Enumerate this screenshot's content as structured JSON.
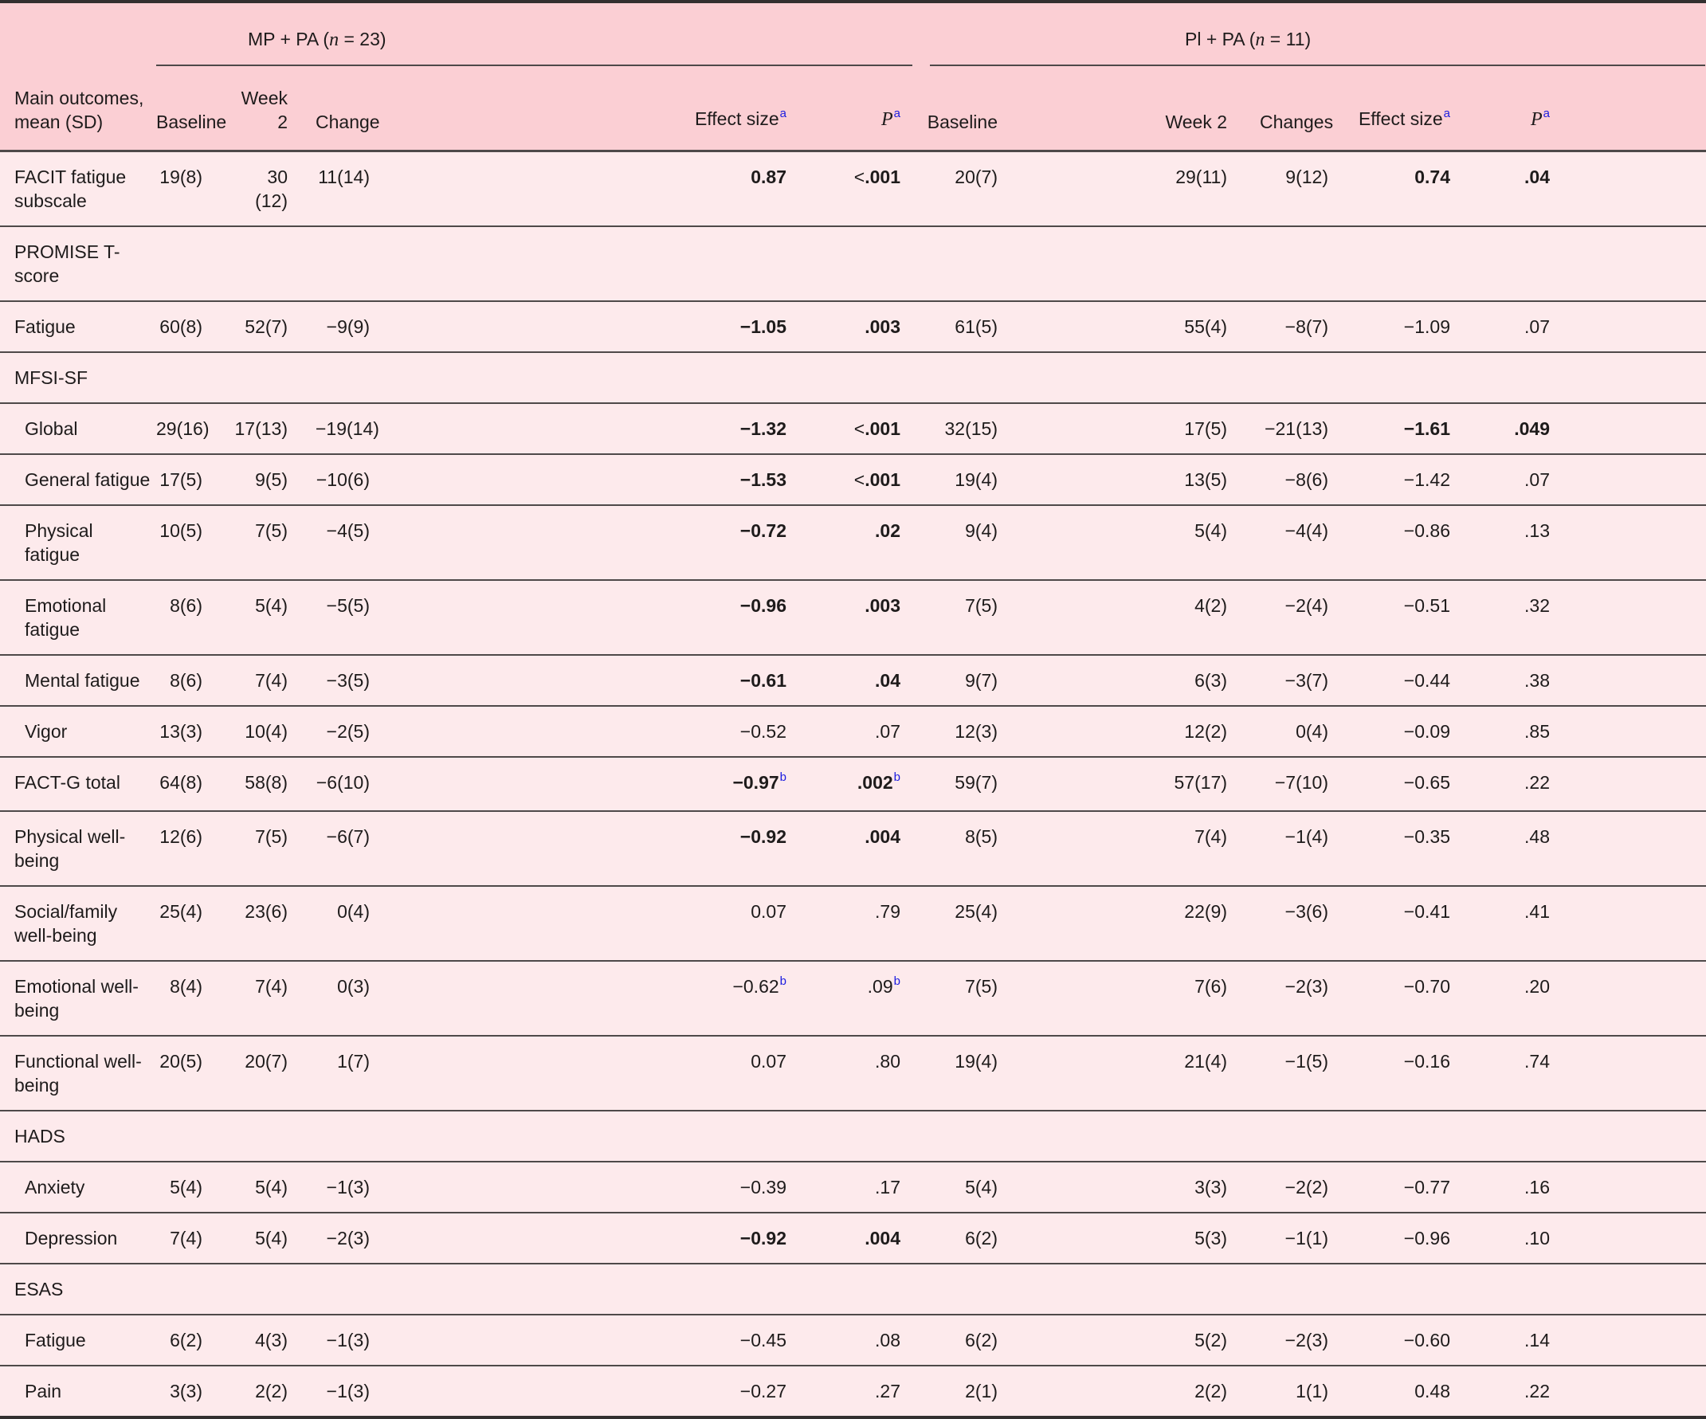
{
  "colors": {
    "header_bg": "#fbcfd4",
    "row_bg": "#fdeaec",
    "line": "#4e4949",
    "line_strong": "#332f2f",
    "text": "#1e1b1b",
    "superscript_blue": "#1b1be0"
  },
  "table": {
    "label_header_lines": [
      "Main outcomes,",
      "mean (SD)"
    ],
    "groups": [
      {
        "title_prefix": "MP + PA (",
        "title_n": "n",
        "title_suffix": " = 23)",
        "columns": [
          {
            "label": "Baseline"
          },
          {
            "label": "Week 2"
          },
          {
            "label": "Change"
          },
          {
            "label": "Effect size",
            "sup": "a"
          },
          {
            "label": "P",
            "sup": "a"
          }
        ]
      },
      {
        "title_prefix": "Pl + PA (",
        "title_n": "n",
        "title_suffix": " = 11)",
        "columns": [
          {
            "label": "Baseline"
          },
          {
            "label": "Week 2"
          },
          {
            "label": "Changes"
          },
          {
            "label": "Effect size",
            "sup": "a"
          },
          {
            "label": "P",
            "sup": "a"
          }
        ]
      }
    ],
    "rows": [
      {
        "label": [
          "FACIT fatigue",
          "subscale"
        ],
        "indent": false,
        "section": false,
        "cells": [
          {
            "t": "19(8)"
          },
          {
            "t": "30 (12)"
          },
          {
            "t": "11(14)"
          },
          {
            "t": "0.87",
            "b": true
          },
          {
            "t": "<.001",
            "b": true
          },
          {
            "t": "20(7)"
          },
          {
            "t": "29(11)"
          },
          {
            "t": "9(12)"
          },
          {
            "t": "0.74",
            "b": true
          },
          {
            "t": ".04",
            "b": true
          }
        ]
      },
      {
        "label": [
          "PROMISE T-score"
        ],
        "indent": false,
        "section": true,
        "cells": []
      },
      {
        "label": [
          "Fatigue"
        ],
        "indent": false,
        "section": false,
        "cells": [
          {
            "t": "60(8)"
          },
          {
            "t": "52(7)"
          },
          {
            "t": "−9(9)"
          },
          {
            "t": "−1.05",
            "b": true
          },
          {
            "t": ".003",
            "b": true
          },
          {
            "t": "61(5)"
          },
          {
            "t": "55(4)"
          },
          {
            "t": "−8(7)"
          },
          {
            "t": "−1.09"
          },
          {
            "t": ".07"
          }
        ]
      },
      {
        "label": [
          "MFSI-SF"
        ],
        "indent": false,
        "section": true,
        "cells": []
      },
      {
        "label": [
          "Global"
        ],
        "indent": true,
        "section": false,
        "cells": [
          {
            "t": "29(16)"
          },
          {
            "t": "17(13)"
          },
          {
            "t": "−19(14)"
          },
          {
            "t": "−1.32",
            "b": true
          },
          {
            "t": "<.001",
            "b": true
          },
          {
            "t": "32(15)"
          },
          {
            "t": "17(5)"
          },
          {
            "t": "−21(13)"
          },
          {
            "t": "−1.61",
            "b": true
          },
          {
            "t": ".049",
            "b": true
          }
        ]
      },
      {
        "label": [
          "General fatigue"
        ],
        "indent": true,
        "section": false,
        "cells": [
          {
            "t": "17(5)"
          },
          {
            "t": "9(5)"
          },
          {
            "t": "−10(6)"
          },
          {
            "t": "−1.53",
            "b": true
          },
          {
            "t": "<.001",
            "b": true
          },
          {
            "t": "19(4)"
          },
          {
            "t": "13(5)"
          },
          {
            "t": "−8(6)"
          },
          {
            "t": "−1.42"
          },
          {
            "t": ".07"
          }
        ]
      },
      {
        "label": [
          "Physical fatigue"
        ],
        "indent": true,
        "section": false,
        "cells": [
          {
            "t": "10(5)"
          },
          {
            "t": "7(5)"
          },
          {
            "t": "−4(5)"
          },
          {
            "t": "−0.72",
            "b": true
          },
          {
            "t": ".02",
            "b": true
          },
          {
            "t": "9(4)"
          },
          {
            "t": "5(4)"
          },
          {
            "t": "−4(4)"
          },
          {
            "t": "−0.86"
          },
          {
            "t": ".13"
          }
        ]
      },
      {
        "label": [
          "Emotional",
          "fatigue"
        ],
        "indent": true,
        "section": false,
        "cells": [
          {
            "t": "8(6)"
          },
          {
            "t": "5(4)"
          },
          {
            "t": "−5(5)"
          },
          {
            "t": "−0.96",
            "b": true
          },
          {
            "t": ".003",
            "b": true
          },
          {
            "t": "7(5)"
          },
          {
            "t": "4(2)"
          },
          {
            "t": "−2(4)"
          },
          {
            "t": "−0.51"
          },
          {
            "t": ".32"
          }
        ]
      },
      {
        "label": [
          "Mental fatigue"
        ],
        "indent": true,
        "section": false,
        "cells": [
          {
            "t": "8(6)"
          },
          {
            "t": "7(4)"
          },
          {
            "t": "−3(5)"
          },
          {
            "t": "−0.61",
            "b": true
          },
          {
            "t": ".04",
            "b": true
          },
          {
            "t": "9(7)"
          },
          {
            "t": "6(3)"
          },
          {
            "t": "−3(7)"
          },
          {
            "t": "−0.44"
          },
          {
            "t": ".38"
          }
        ]
      },
      {
        "label": [
          "Vigor"
        ],
        "indent": true,
        "section": false,
        "cells": [
          {
            "t": "13(3)"
          },
          {
            "t": "10(4)"
          },
          {
            "t": "−2(5)"
          },
          {
            "t": "−0.52"
          },
          {
            "t": ".07"
          },
          {
            "t": "12(3)"
          },
          {
            "t": "12(2)"
          },
          {
            "t": "0(4)"
          },
          {
            "t": "−0.09"
          },
          {
            "t": ".85"
          }
        ]
      },
      {
        "label": [
          "FACT-G total"
        ],
        "indent": false,
        "section": false,
        "cells": [
          {
            "t": "64(8)"
          },
          {
            "t": "58(8)"
          },
          {
            "t": "−6(10)"
          },
          {
            "t": "−0.97",
            "b": true,
            "s": "b"
          },
          {
            "t": ".002",
            "b": true,
            "s": "b"
          },
          {
            "t": "59(7)"
          },
          {
            "t": "57(17)"
          },
          {
            "t": "−7(10)"
          },
          {
            "t": "−0.65"
          },
          {
            "t": ".22"
          }
        ]
      },
      {
        "label": [
          "Physical well-",
          "being"
        ],
        "indent": false,
        "section": false,
        "cells": [
          {
            "t": "12(6)"
          },
          {
            "t": "7(5)"
          },
          {
            "t": "−6(7)"
          },
          {
            "t": "−0.92",
            "b": true
          },
          {
            "t": ".004",
            "b": true
          },
          {
            "t": "8(5)"
          },
          {
            "t": "7(4)"
          },
          {
            "t": "−1(4)"
          },
          {
            "t": "−0.35"
          },
          {
            "t": ".48"
          }
        ]
      },
      {
        "label": [
          "Social/family",
          "well-being"
        ],
        "indent": false,
        "section": false,
        "cells": [
          {
            "t": "25(4)"
          },
          {
            "t": "23(6)"
          },
          {
            "t": "0(4)"
          },
          {
            "t": "0.07"
          },
          {
            "t": ".79"
          },
          {
            "t": "25(4)"
          },
          {
            "t": "22(9)"
          },
          {
            "t": "−3(6)"
          },
          {
            "t": "−0.41"
          },
          {
            "t": ".41"
          }
        ]
      },
      {
        "label": [
          "Emotional well-",
          "being"
        ],
        "indent": false,
        "section": false,
        "cells": [
          {
            "t": "8(4)"
          },
          {
            "t": "7(4)"
          },
          {
            "t": "0(3)"
          },
          {
            "t": "−0.62",
            "s": "b"
          },
          {
            "t": ".09",
            "s": "b"
          },
          {
            "t": "7(5)"
          },
          {
            "t": "7(6)"
          },
          {
            "t": "−2(3)"
          },
          {
            "t": "−0.70"
          },
          {
            "t": ".20"
          }
        ]
      },
      {
        "label": [
          "Functional well-",
          "being"
        ],
        "indent": false,
        "section": false,
        "cells": [
          {
            "t": "20(5)"
          },
          {
            "t": "20(7)"
          },
          {
            "t": "1(7)"
          },
          {
            "t": "0.07"
          },
          {
            "t": ".80"
          },
          {
            "t": "19(4)"
          },
          {
            "t": "21(4)"
          },
          {
            "t": "−1(5)"
          },
          {
            "t": "−0.16"
          },
          {
            "t": ".74"
          }
        ]
      },
      {
        "label": [
          "HADS"
        ],
        "indent": false,
        "section": true,
        "cells": []
      },
      {
        "label": [
          "Anxiety"
        ],
        "indent": true,
        "section": false,
        "cells": [
          {
            "t": "5(4)"
          },
          {
            "t": "5(4)"
          },
          {
            "t": "−1(3)"
          },
          {
            "t": "−0.39"
          },
          {
            "t": ".17"
          },
          {
            "t": "5(4)"
          },
          {
            "t": "3(3)"
          },
          {
            "t": "−2(2)"
          },
          {
            "t": "−0.77"
          },
          {
            "t": ".16"
          }
        ]
      },
      {
        "label": [
          "Depression"
        ],
        "indent": true,
        "section": false,
        "cells": [
          {
            "t": "7(4)"
          },
          {
            "t": "5(4)"
          },
          {
            "t": "−2(3)"
          },
          {
            "t": "−0.92",
            "b": true
          },
          {
            "t": ".004",
            "b": true
          },
          {
            "t": "6(2)"
          },
          {
            "t": "5(3)"
          },
          {
            "t": "−1(1)"
          },
          {
            "t": "−0.96"
          },
          {
            "t": ".10"
          }
        ]
      },
      {
        "label": [
          "ESAS"
        ],
        "indent": false,
        "section": true,
        "cells": []
      },
      {
        "label": [
          "Fatigue"
        ],
        "indent": true,
        "section": false,
        "cells": [
          {
            "t": "6(2)"
          },
          {
            "t": "4(3)"
          },
          {
            "t": "−1(3)"
          },
          {
            "t": "−0.45"
          },
          {
            "t": ".08"
          },
          {
            "t": "6(2)"
          },
          {
            "t": "5(2)"
          },
          {
            "t": "−2(3)"
          },
          {
            "t": "−0.60"
          },
          {
            "t": ".14"
          }
        ]
      },
      {
        "label": [
          "Pain"
        ],
        "indent": true,
        "section": false,
        "cells": [
          {
            "t": "3(3)"
          },
          {
            "t": "2(2)"
          },
          {
            "t": "−1(3)"
          },
          {
            "t": "−0.27"
          },
          {
            "t": ".27"
          },
          {
            "t": "2(1)"
          },
          {
            "t": "2(2)"
          },
          {
            "t": "1(1)"
          },
          {
            "t": "0.48"
          },
          {
            "t": ".22"
          }
        ]
      }
    ]
  }
}
